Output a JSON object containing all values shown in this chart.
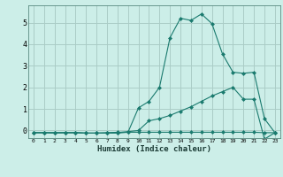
{
  "xlabel": "Humidex (Indice chaleur)",
  "background_color": "#cceee8",
  "grid_color": "#aaccC6",
  "line_color": "#1a7a6e",
  "x_ticks": [
    0,
    1,
    2,
    3,
    4,
    5,
    6,
    7,
    8,
    9,
    10,
    11,
    12,
    13,
    14,
    15,
    16,
    17,
    18,
    19,
    20,
    21,
    22,
    23
  ],
  "y_ticks": [
    0,
    1,
    2,
    3,
    4,
    5
  ],
  "ylim": [
    -0.35,
    5.8
  ],
  "xlim": [
    -0.5,
    23.5
  ],
  "line1_x": [
    0,
    1,
    2,
    3,
    4,
    5,
    6,
    7,
    8,
    9,
    10,
    11,
    12,
    13,
    14,
    15,
    16,
    17,
    18,
    19,
    20,
    21,
    22,
    23
  ],
  "line1_y": [
    -0.1,
    -0.1,
    -0.12,
    -0.1,
    -0.1,
    -0.12,
    -0.12,
    -0.1,
    -0.08,
    -0.08,
    -0.08,
    -0.08,
    -0.08,
    -0.08,
    -0.08,
    -0.08,
    -0.08,
    -0.08,
    -0.08,
    -0.08,
    -0.08,
    -0.08,
    -0.1,
    -0.1
  ],
  "line2_x": [
    0,
    1,
    2,
    3,
    4,
    5,
    6,
    7,
    8,
    9,
    10,
    11,
    12,
    13,
    14,
    15,
    16,
    17,
    18,
    19,
    20,
    21,
    22,
    23
  ],
  "line2_y": [
    -0.1,
    -0.1,
    -0.1,
    -0.1,
    -0.1,
    -0.12,
    -0.12,
    -0.12,
    -0.12,
    -0.08,
    1.05,
    1.35,
    2.0,
    4.3,
    5.2,
    5.1,
    5.4,
    4.95,
    3.55,
    2.7,
    2.65,
    2.7,
    0.55,
    -0.1
  ],
  "line3_x": [
    0,
    1,
    2,
    3,
    4,
    5,
    6,
    7,
    8,
    9,
    10,
    11,
    12,
    13,
    14,
    15,
    16,
    17,
    18,
    19,
    20,
    21,
    22,
    23
  ],
  "line3_y": [
    -0.1,
    -0.1,
    -0.1,
    -0.1,
    -0.1,
    -0.12,
    -0.12,
    -0.12,
    -0.1,
    -0.05,
    0.0,
    0.45,
    0.55,
    0.7,
    0.9,
    1.1,
    1.35,
    1.6,
    1.8,
    2.0,
    1.45,
    1.45,
    -0.4,
    -0.1
  ]
}
